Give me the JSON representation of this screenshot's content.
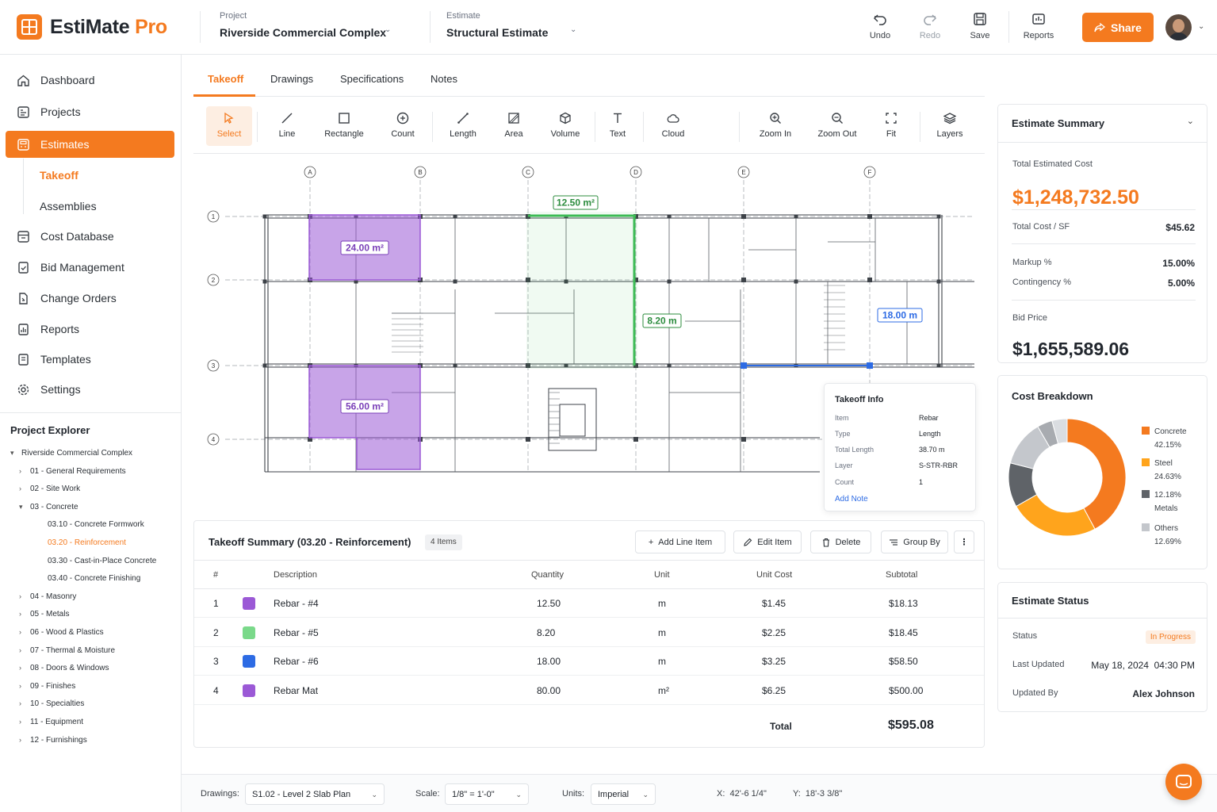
{
  "app": {
    "name_main": "EstiMate",
    "name_accent": " Pro"
  },
  "header": {
    "project_label": "Project",
    "project_value": "Riverside Commercial Complex",
    "estimate_label": "Estimate",
    "estimate_value": "Structural Estimate",
    "actions": {
      "undo": "Undo",
      "redo": "Redo",
      "save": "Save",
      "reports": "Reports"
    },
    "share": "Share"
  },
  "sidebar": {
    "nav": [
      {
        "label": "Dashboard",
        "icon": "home-icon"
      },
      {
        "label": "Projects",
        "icon": "projects-icon"
      },
      {
        "label": "Estimates",
        "icon": "calculator-icon"
      },
      {
        "label": "Cost Database",
        "icon": "database-icon"
      },
      {
        "label": "Bid Management",
        "icon": "bid-icon"
      },
      {
        "label": "Change Orders",
        "icon": "change-orders-icon"
      },
      {
        "label": "Reports",
        "icon": "reports-icon"
      },
      {
        "label": "Templates",
        "icon": "templates-icon"
      },
      {
        "label": "Settings",
        "icon": "gear-icon"
      }
    ],
    "estimates_sub": [
      "Takeoff",
      "Assemblies"
    ],
    "explorer_title": "Project Explorer",
    "tree": [
      "Riverside Commercial Complex",
      "01 - General Requirements",
      "02 - Site Work",
      "03 - Concrete",
      "03.10 - Concrete Formwork",
      "03.20 - Reinforcement",
      "03.30 - Cast-in-Place Concrete",
      "03.40 - Concrete Finishing",
      "04 - Masonry",
      "05 - Metals",
      "06 - Wood & Plastics",
      "07 - Thermal & Moisture",
      "08 - Doors & Windows",
      "09 - Finishes",
      "10 - Specialties",
      "11 - Equipment",
      "12 - Furnishings"
    ]
  },
  "tabs": [
    "Takeoff",
    "Drawings",
    "Specifications",
    "Notes"
  ],
  "tools": {
    "select": "Select",
    "line": "Line",
    "rectangle": "Rectangle",
    "count": "Count",
    "length": "Length",
    "area": "Area",
    "volume": "Volume",
    "text": "Text",
    "cloud": "Cloud",
    "zoom_in": "Zoom In",
    "zoom_out": "Zoom Out",
    "fit": "Fit",
    "layers": "Layers"
  },
  "drawing": {
    "grid_cols": [
      "A",
      "B",
      "C",
      "D",
      "E",
      "F"
    ],
    "grid_rows": [
      "1",
      "2",
      "3",
      "4"
    ],
    "measurements": {
      "area1": "24.00 m²",
      "area2": "56.00 m²",
      "area3": "12.50 m²",
      "len1": "8.20 m",
      "len2": "18.00 m"
    },
    "colors": {
      "purple": "#9b59d6",
      "green": "#3dbb55",
      "blue": "#2d6be4"
    }
  },
  "takeoff_info": {
    "title": "Takeoff Info",
    "rows": [
      {
        "k": "Item",
        "v": "Rebar"
      },
      {
        "k": "Type",
        "v": "Length"
      },
      {
        "k": "Total Length",
        "v": "38.70 m"
      },
      {
        "k": "Layer",
        "v": "S-STR-RBR"
      },
      {
        "k": "Count",
        "v": "1"
      }
    ],
    "add_note": "Add Note"
  },
  "summary": {
    "title": "Takeoff Summary (03.20 - Reinforcement)",
    "items_badge": "4 Items",
    "buttons": {
      "add": "Add Line Item",
      "edit": "Edit Item",
      "delete": "Delete",
      "group": "Group By"
    },
    "headers": {
      "num": "#",
      "desc": "Description",
      "qty": "Quantity",
      "unit": "Unit",
      "cost": "Unit Cost",
      "sub": "Subtotal"
    },
    "rows": [
      {
        "num": "1",
        "color": "#9b59d6",
        "desc": "Rebar - #4",
        "qty": "12.50",
        "unit": "m",
        "cost": "$1.45",
        "sub": "$18.13"
      },
      {
        "num": "2",
        "color": "#7ad98a",
        "desc": "Rebar - #5",
        "qty": "8.20",
        "unit": "m",
        "cost": "$2.25",
        "sub": "$18.45"
      },
      {
        "num": "3",
        "color": "#2d6be4",
        "desc": "Rebar - #6",
        "qty": "18.00",
        "unit": "m",
        "cost": "$3.25",
        "sub": "$58.50"
      },
      {
        "num": "4",
        "color": "#9b59d6",
        "desc": "Rebar Mat",
        "qty": "80.00",
        "unit": "m²",
        "cost": "$6.25",
        "sub": "$500.00"
      }
    ],
    "total_label": "Total",
    "total_value": "$595.08"
  },
  "estimate_summary": {
    "title": "Estimate Summary",
    "total_label": "Total Estimated Cost",
    "total_value": "$1,248,732.50",
    "cost_sf_label": "Total Cost / SF",
    "cost_sf_value": "$45.62",
    "markup_label": "Markup %",
    "markup_value": "15.00%",
    "contingency_label": "Contingency %",
    "contingency_value": "5.00%",
    "bid_label": "Bid Price",
    "bid_value": "$1,655,589.06"
  },
  "chart_data": {
    "type": "pie",
    "title": "Cost Breakdown",
    "categories": [
      "Concrete",
      "Steel",
      "Metals",
      "Others"
    ],
    "values": [
      42.15,
      24.63,
      12.18,
      12.69
    ],
    "labels": [
      "42.15%",
      "24.63%",
      "12.18%",
      "12.69%"
    ],
    "colors": [
      "#f47a1f",
      "#ffa41c",
      "#5f6368",
      "#c4c7cc"
    ],
    "extra_segment_colors": [
      "#a8abb0",
      "#dadde1"
    ],
    "legend_position": "right"
  },
  "estimate_status": {
    "title": "Estimate Status",
    "status_label": "Status",
    "status_value": "In Progress",
    "updated_label": "Last Updated",
    "updated_value": "May 18, 2024  04:30 PM",
    "by_label": "Updated By",
    "by_value": "Alex Johnson"
  },
  "bottom": {
    "drawings_label": "Drawings:",
    "drawings_value": "S1.02 - Level 2 Slab Plan",
    "scale_label": "Scale:",
    "scale_value": "1/8\" = 1'-0\"",
    "units_label": "Units:",
    "units_value": "Imperial",
    "x_readout": "X:  42'-6 1/4\"",
    "y_readout": "Y:  18'-3 3/8\""
  }
}
